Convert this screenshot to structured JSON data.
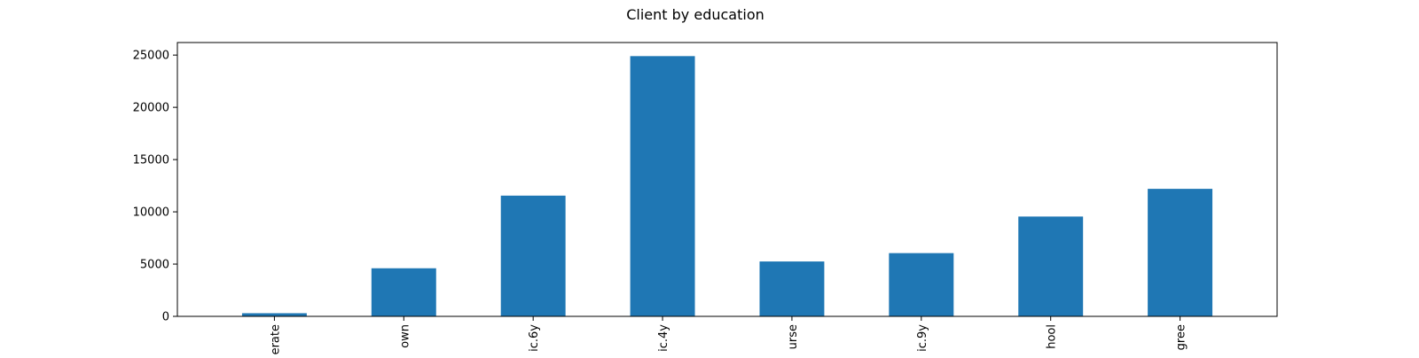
{
  "chart_data": {
    "type": "bar",
    "title": "Client by education",
    "xlabel": "",
    "ylabel": "",
    "categories": [
      "erate",
      "own",
      "ic.6y",
      "ic.4y",
      "urse",
      "ic.9y",
      "hool",
      "gree"
    ],
    "values": [
      300,
      4600,
      11550,
      24900,
      5250,
      6050,
      9550,
      12200
    ],
    "ylim": [
      0,
      26200
    ],
    "yticks": [
      0,
      5000,
      10000,
      15000,
      20000,
      25000
    ],
    "grid": false,
    "legend": "none",
    "bar_color": "#1f77b4"
  }
}
